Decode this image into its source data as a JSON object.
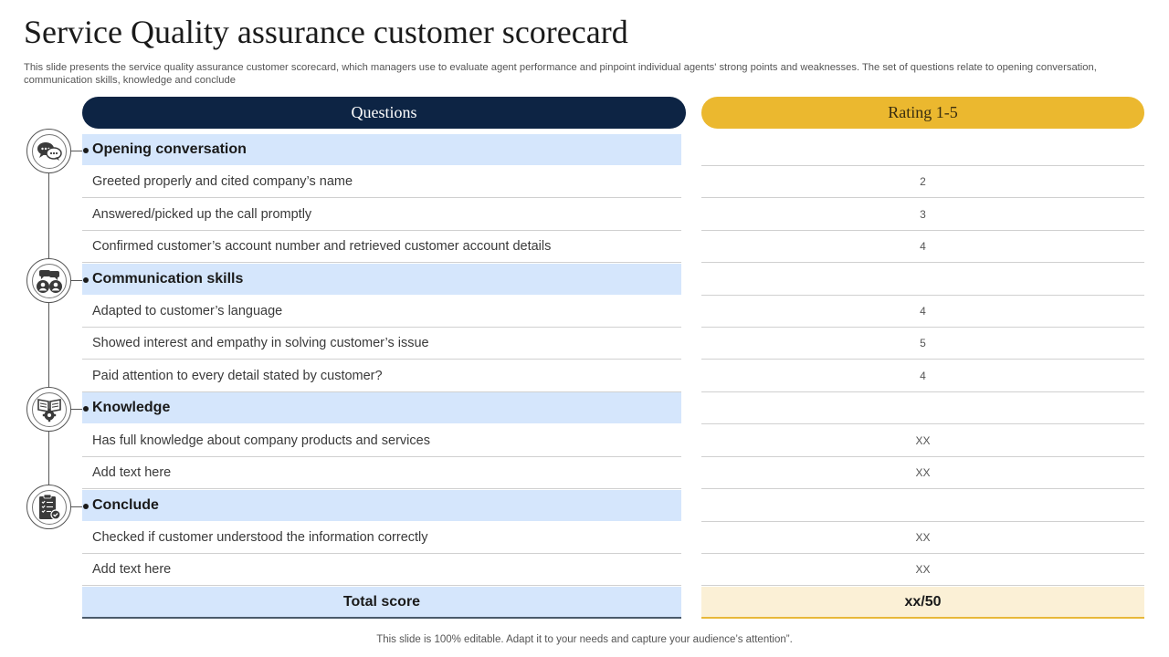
{
  "title": "Service Quality assurance customer scorecard",
  "subtitle": "This slide presents the service quality assurance customer scorecard, which managers use to evaluate agent performance and pinpoint individual agents' strong points and weaknesses. The set of questions relate to opening conversation, communication skills, knowledge and conclude",
  "headers": {
    "questions": "Questions",
    "rating": "Rating 1-5"
  },
  "rows": [
    {
      "type": "section",
      "question": "Opening conversation",
      "rating": ""
    },
    {
      "type": "item",
      "question": "Greeted properly and cited company’s name",
      "rating": "2"
    },
    {
      "type": "item",
      "question": "Answered/picked up the call promptly",
      "rating": "3"
    },
    {
      "type": "item",
      "question": "Confirmed customer’s account number and retrieved  customer account details",
      "rating": "4"
    },
    {
      "type": "section",
      "question": "Communication skills",
      "rating": ""
    },
    {
      "type": "item",
      "question": "Adapted to customer’s language",
      "rating": "4"
    },
    {
      "type": "item",
      "question": "Showed interest and empathy in solving customer’s issue",
      "rating": "5"
    },
    {
      "type": "item",
      "question": "Paid attention to every detail stated by customer?",
      "rating": "4"
    },
    {
      "type": "section",
      "question": "Knowledge",
      "rating": ""
    },
    {
      "type": "item",
      "question": "Has full knowledge about company products and services",
      "rating": "XX"
    },
    {
      "type": "item",
      "question": "Add text here",
      "rating": "XX"
    },
    {
      "type": "section",
      "question": "Conclude",
      "rating": ""
    },
    {
      "type": "item",
      "question": "Checked if customer understood the information correctly",
      "rating": "XX"
    },
    {
      "type": "item",
      "question": "Add text here",
      "rating": "XX"
    }
  ],
  "total": {
    "label": "Total score",
    "value": "xx/50"
  },
  "section_icons": [
    "chat-bubbles-icon",
    "people-talking-icon",
    "book-gear-icon",
    "checklist-clipboard-icon"
  ],
  "colors": {
    "navy": "#0d2444",
    "gold": "#ebb82f",
    "section_blue": "#d5e6fc",
    "total_cream": "#fbf0d6"
  },
  "footer": "This slide is 100% editable. Adapt it to your needs and capture your audience’s attention”."
}
